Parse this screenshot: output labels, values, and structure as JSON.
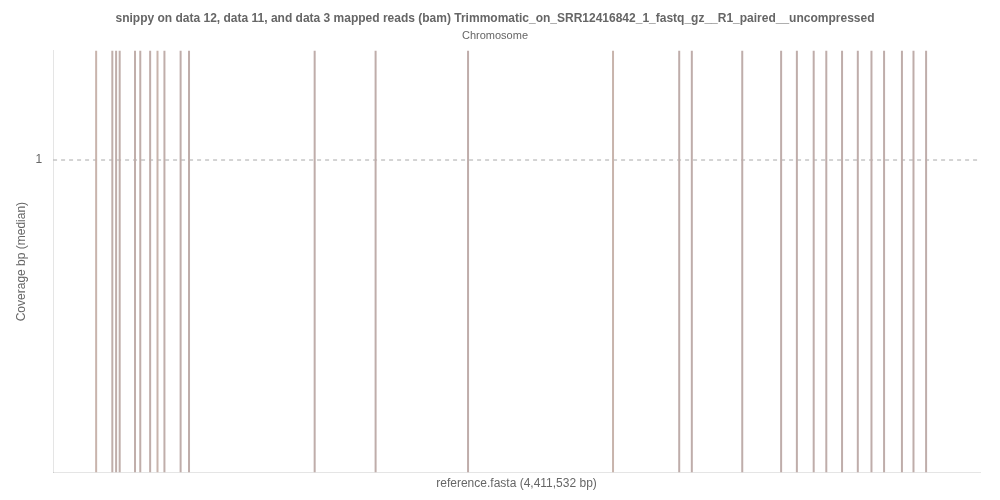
{
  "chart_data": {
    "type": "vlines",
    "title": "snippy on data 12, data 11, and data 3 mapped reads (bam) Trimmomatic_on_SRR12416842_1_fastq_gz__R1_paired__uncompressed",
    "subtitle": "Chromosome",
    "x_label": "reference.fasta (4,411,532 bp)",
    "y_label": "Coverage bp (median)",
    "x": [
      205000,
      282000,
      300000,
      317000,
      390000,
      415000,
      462000,
      497000,
      530000,
      607000,
      647000,
      1245000,
      1535000,
      1975000,
      2665000,
      2980000,
      3040000,
      3280000,
      3465000,
      3540000,
      3620000,
      3680000,
      3755000,
      3830000,
      3895000,
      3955000,
      4040000,
      4095000,
      4155000
    ],
    "colors": [
      "#c8b4ac",
      "#c0aeaa",
      "#c0aeaa",
      "#c0aeaa",
      "#c0aeaa",
      "#c0aeaa",
      "#c0aeaa",
      "#c8b4ac",
      "#c0aeaa",
      "#bfadaa",
      "#bfadaa",
      "#bfadaa",
      "#bfadaa",
      "#bfadaa",
      "#c8b4ac",
      "#bfadaa",
      "#bfadaa",
      "#bfadaa",
      "#bfadaa",
      "#bfadaa",
      "#bfadaa",
      "#bfadaa",
      "#bfadaa",
      "#bfadaa",
      "#bfadaa",
      "#bfadaa",
      "#bfadaa",
      "#bfadaa",
      "#bfadaa"
    ],
    "reference_line": {
      "y": 1,
      "color": "#aaaaaa",
      "line_style": "dashed"
    },
    "xlim": [
      0,
      4411532
    ],
    "ylim": [
      0,
      1.35
    ],
    "yticks": [
      1
    ],
    "tick_labels": "y",
    "grid": false
  }
}
